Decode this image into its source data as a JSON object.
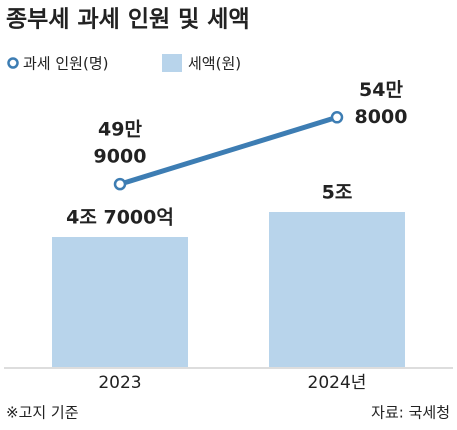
{
  "chart_data": {
    "type": "bar-line",
    "title": "종부세 과세 인원 및 세액",
    "categories": [
      "2023",
      "2024년"
    ],
    "series": [
      {
        "name": "세액(원)",
        "type": "bar",
        "color": "#b8d4eb",
        "values": [
          47000,
          50000
        ],
        "value_labels": [
          [
            "4조 7000억"
          ],
          [
            "5조"
          ]
        ]
      },
      {
        "name": "과세 인원(명)",
        "type": "line",
        "axis": "y2",
        "color": "#3d7db3",
        "values": [
          499000,
          548000
        ],
        "value_labels": [
          [
            "49만",
            "9000"
          ],
          [
            "54만",
            "8000"
          ]
        ]
      }
    ],
    "ylim": [
      31400,
      64640
    ],
    "y2lim": [
      365000,
      568000
    ],
    "note": "※고지 기준",
    "source": "자료: 국세청"
  }
}
